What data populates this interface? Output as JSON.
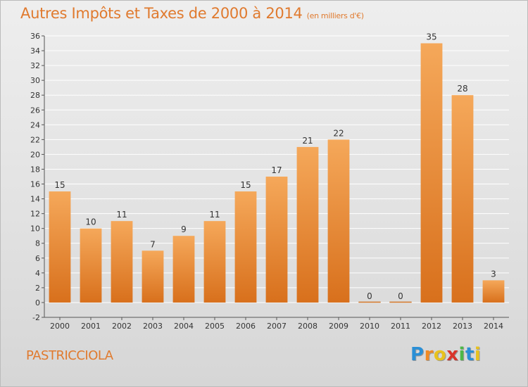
{
  "header": {
    "title": "Autres Impôts et Taxes de 2000 à 2014",
    "subtitle": "(en milliers d'€)"
  },
  "footer": {
    "commune": "PASTRICCIOLA",
    "brand": "Proxiti",
    "brand_colors": [
      "#2a8fd6",
      "#f08a24",
      "#e8c21d",
      "#d9342b",
      "#4db848",
      "#2a8fd6",
      "#e8c21d"
    ]
  },
  "colors": {
    "accent": "#e07a2e",
    "bar_top": "#f5a85a",
    "bar_bottom": "#d8701c",
    "grid": "#ffffff"
  },
  "chart_data": {
    "type": "bar",
    "title": "Autres Impôts et Taxes de 2000 à 2014",
    "subtitle": "(en milliers d'€)",
    "categories": [
      "2000",
      "2001",
      "2002",
      "2003",
      "2004",
      "2005",
      "2006",
      "2007",
      "2008",
      "2009",
      "2010",
      "2011",
      "2012",
      "2013",
      "2014"
    ],
    "values": [
      15,
      10,
      11,
      7,
      9,
      11,
      15,
      17,
      21,
      22,
      0,
      0,
      35,
      28,
      3
    ],
    "data_labels": [
      "15",
      "10",
      "11",
      "7",
      "9",
      "11",
      "15",
      "17",
      "21",
      "22",
      "0",
      "0",
      "35",
      "28",
      "3"
    ],
    "yticks": [
      -2,
      0,
      2,
      4,
      6,
      8,
      10,
      12,
      14,
      16,
      18,
      20,
      22,
      24,
      26,
      28,
      30,
      32,
      34,
      36
    ],
    "ylim": [
      -2,
      36
    ],
    "grid": true,
    "legend": "none"
  }
}
